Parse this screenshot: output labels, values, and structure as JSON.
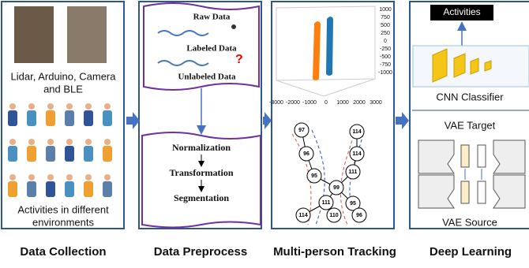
{
  "panels": [
    {
      "title": "Data Collection",
      "texts": [
        "Lidar, Arduino, Camera",
        "and BLE",
        "Activities in different",
        "environments"
      ]
    },
    {
      "title": "Data Preprocess",
      "texts": [
        "Raw Data",
        "Labeled Data",
        "Unlabeled Data",
        "Normalization",
        "Transformation",
        "Segmentation"
      ]
    },
    {
      "title": "Multi-person Tracking",
      "y_ticks": [
        "1000",
        "750",
        "500",
        "250",
        "0",
        "-250",
        "-500",
        "-750",
        "-1000"
      ],
      "x_ticks": [
        "-3000",
        "-2000",
        "-1000",
        "0",
        "1000",
        "2000",
        "3000"
      ],
      "nodes": [
        "97",
        "96",
        "95",
        "114",
        "114",
        "111",
        "99",
        "111",
        "95",
        "114",
        "110",
        "96"
      ]
    },
    {
      "title": "Deep Learning",
      "texts": [
        "Activities",
        "CNN Classifier",
        "VAE Target",
        "VAE Source"
      ]
    }
  ]
}
